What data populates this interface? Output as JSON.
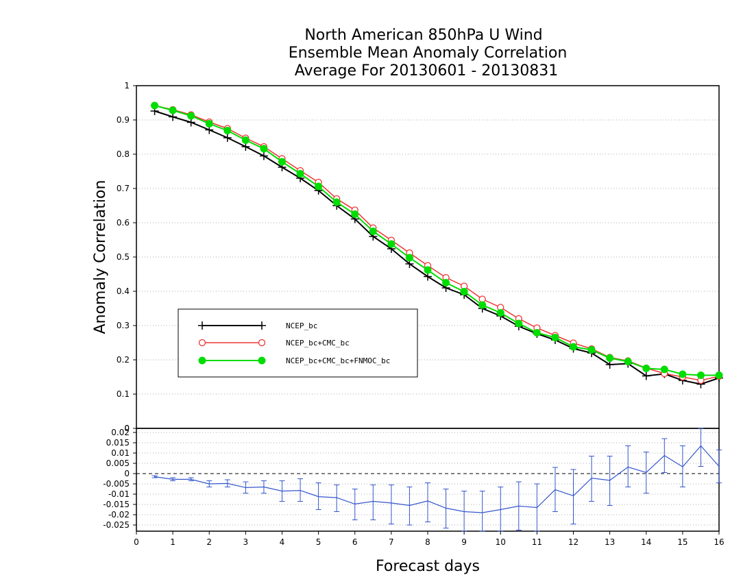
{
  "chart_data": {
    "type": "line",
    "title_lines": [
      "North American 850hPa U Wind",
      "Ensemble Mean Anomaly Correlation",
      "Average For 20130601 - 20130831"
    ],
    "xlabel": "Forecast days",
    "ylabel": "Anomaly Correlation",
    "xlim": [
      0,
      16
    ],
    "x_ticks": [
      "0",
      "1",
      "2",
      "3",
      "4",
      "5",
      "6",
      "7",
      "8",
      "9",
      "10",
      "11",
      "12",
      "13",
      "14",
      "15",
      "16"
    ],
    "main_panel": {
      "ylim": [
        0,
        1
      ],
      "y_ticks": [
        "0",
        "0.1",
        "0.2",
        "0.3",
        "0.4",
        "0.5",
        "0.6",
        "0.7",
        "0.8",
        "0.9",
        "1"
      ],
      "grid": true,
      "legend_position": "lower-left",
      "x": [
        0.5,
        1,
        1.5,
        2,
        2.5,
        3,
        3.5,
        4,
        4.5,
        5,
        5.5,
        6,
        6.5,
        7,
        7.5,
        8,
        8.5,
        9,
        9.5,
        10,
        10.5,
        11,
        11.5,
        12,
        12.5,
        13,
        13.5,
        14,
        14.5,
        15,
        15.5,
        16
      ],
      "series": [
        {
          "name": "NCEP_bc",
          "color": "#000000",
          "marker": "plus",
          "values": [
            0.926,
            0.909,
            0.893,
            0.871,
            0.848,
            0.822,
            0.795,
            0.762,
            0.73,
            0.694,
            0.65,
            0.611,
            0.56,
            0.524,
            0.48,
            0.443,
            0.41,
            0.39,
            0.35,
            0.328,
            0.298,
            0.276,
            0.258,
            0.233,
            0.22,
            0.186,
            0.189,
            0.153,
            0.159,
            0.14,
            0.129,
            0.147
          ]
        },
        {
          "name": "NCEP_bc+CMC_bc",
          "color": "#ee3333",
          "marker": "open-circle",
          "values": [
            0.942,
            0.93,
            0.915,
            0.894,
            0.875,
            0.847,
            0.822,
            0.787,
            0.752,
            0.718,
            0.67,
            0.637,
            0.585,
            0.549,
            0.512,
            0.475,
            0.44,
            0.415,
            0.377,
            0.353,
            0.32,
            0.293,
            0.271,
            0.249,
            0.232,
            0.207,
            0.197,
            0.176,
            0.16,
            0.15,
            0.14,
            0.152
          ]
        },
        {
          "name": "NCEP_bc+CMC_bc+FNMOC_bc",
          "color": "#00dd00",
          "marker": "filled-circle",
          "values": [
            0.942,
            0.928,
            0.912,
            0.889,
            0.869,
            0.841,
            0.816,
            0.778,
            0.743,
            0.706,
            0.66,
            0.625,
            0.575,
            0.538,
            0.498,
            0.462,
            0.425,
            0.399,
            0.36,
            0.337,
            0.306,
            0.279,
            0.265,
            0.238,
            0.229,
            0.205,
            0.195,
            0.175,
            0.172,
            0.158,
            0.155,
            0.155
          ]
        }
      ]
    },
    "diff_panel": {
      "ylim": [
        -0.028,
        0.022
      ],
      "y_ticks": [
        "0.02",
        "0.015",
        "0.01",
        "0.005",
        "0",
        "-0.005",
        "-0.01",
        "-0.015",
        "-0.02",
        "-0.025"
      ],
      "grid": true,
      "series": {
        "color": "#3355cc",
        "x": [
          0.5,
          1,
          1.5,
          2,
          2.5,
          3,
          3.5,
          4,
          4.5,
          5,
          5.5,
          6,
          6.5,
          7,
          7.5,
          8,
          8.5,
          9,
          9.5,
          10,
          10.5,
          11,
          11.5,
          12,
          12.5,
          13,
          13.5,
          14,
          14.5,
          15,
          15.5,
          16
        ],
        "values": [
          -0.0015,
          -0.0028,
          -0.0028,
          -0.005,
          -0.0048,
          -0.0068,
          -0.0065,
          -0.0085,
          -0.0082,
          -0.0112,
          -0.0117,
          -0.0148,
          -0.0135,
          -0.0143,
          -0.0155,
          -0.0133,
          -0.0168,
          -0.0185,
          -0.019,
          -0.0175,
          -0.0158,
          -0.0165,
          -0.0078,
          -0.0108,
          -0.0022,
          -0.0033,
          0.0032,
          0.0005,
          0.0088,
          0.0033,
          0.0135,
          0.0035
        ],
        "err_low": [
          -0.002,
          -0.0035,
          -0.0035,
          -0.0065,
          -0.0065,
          -0.0095,
          -0.0095,
          -0.0135,
          -0.0135,
          -0.0175,
          -0.0185,
          -0.0225,
          -0.0225,
          -0.0245,
          -0.025,
          -0.0235,
          -0.0265,
          -0.0285,
          -0.0285,
          -0.0285,
          -0.0275,
          -0.0285,
          -0.0185,
          -0.0245,
          -0.0135,
          -0.0155,
          -0.0065,
          -0.0095,
          0.0005,
          -0.0065,
          0.0035,
          -0.0045
        ],
        "err_high": [
          -0.001,
          -0.002,
          -0.002,
          -0.0035,
          -0.003,
          -0.004,
          -0.0035,
          -0.0035,
          -0.0025,
          -0.0045,
          -0.0055,
          -0.0075,
          -0.0055,
          -0.0055,
          -0.0065,
          -0.0045,
          -0.0075,
          -0.0085,
          -0.0085,
          -0.0065,
          -0.004,
          -0.005,
          0.003,
          0.002,
          0.0085,
          0.0085,
          0.0135,
          0.0105,
          0.017,
          0.0135,
          0.022,
          0.0115
        ]
      }
    }
  }
}
